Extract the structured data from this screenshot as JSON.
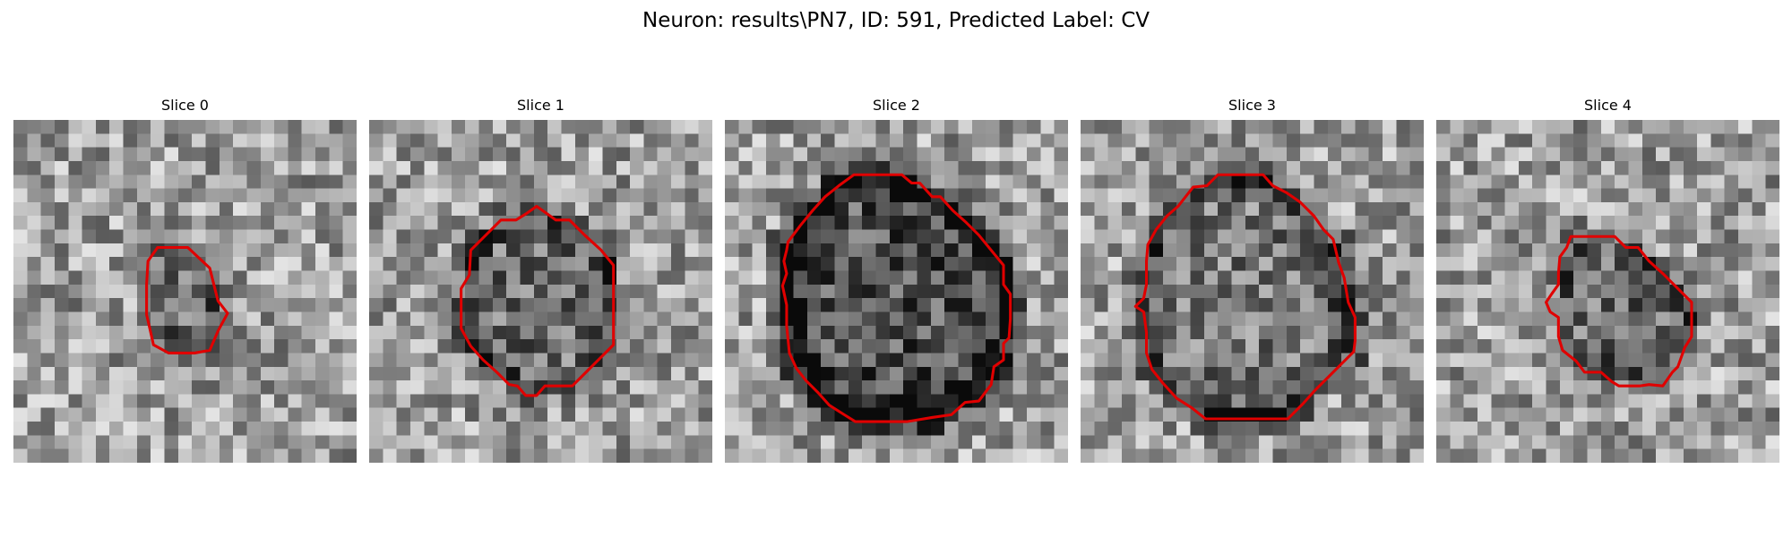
{
  "figure": {
    "title": "Neuron: results\\PN7, ID: 591, Predicted Label: CV",
    "contour_color": "#e00000",
    "colormap": "gray",
    "grid_size": 25,
    "panels": [
      {
        "title": "Slice 0",
        "seed": 11,
        "blob_strength": 0.2,
        "ring_strength": 0.1,
        "outline": [
          [
            10.5,
            9.3
          ],
          [
            12.7,
            9.3
          ],
          [
            14.3,
            10.8
          ],
          [
            14.9,
            13.2
          ],
          [
            15.6,
            14.1
          ],
          [
            14.9,
            15.4
          ],
          [
            14.3,
            16.8
          ],
          [
            13.2,
            17.0
          ],
          [
            11.3,
            17.0
          ],
          [
            10.2,
            16.4
          ],
          [
            10.0,
            15.5
          ],
          [
            9.7,
            14.2
          ],
          [
            9.7,
            12.0
          ],
          [
            9.8,
            10.3
          ]
        ]
      },
      {
        "title": "Slice 1",
        "seed": 23,
        "blob_strength": 0.18,
        "ring_strength": 0.22,
        "outline": [
          [
            11.5,
            6.8
          ],
          [
            12.2,
            6.3
          ],
          [
            12.9,
            6.8
          ],
          [
            13.6,
            7.3
          ],
          [
            14.6,
            7.3
          ],
          [
            15.7,
            8.4
          ],
          [
            16.9,
            9.5
          ],
          [
            17.8,
            10.6
          ],
          [
            17.8,
            12.5
          ],
          [
            17.8,
            14.2
          ],
          [
            17.8,
            16.4
          ],
          [
            16.8,
            17.4
          ],
          [
            15.8,
            18.4
          ],
          [
            14.8,
            19.4
          ],
          [
            13.7,
            19.4
          ],
          [
            12.8,
            19.4
          ],
          [
            12.2,
            20.1
          ],
          [
            11.4,
            20.1
          ],
          [
            10.8,
            19.4
          ],
          [
            10.2,
            19.3
          ],
          [
            9.3,
            18.4
          ],
          [
            8.3,
            17.5
          ],
          [
            7.4,
            16.5
          ],
          [
            6.7,
            15.2
          ],
          [
            6.7,
            13.8
          ],
          [
            6.7,
            12.3
          ],
          [
            7.3,
            11.3
          ],
          [
            7.4,
            9.5
          ],
          [
            8.5,
            8.4
          ],
          [
            9.6,
            7.3
          ],
          [
            10.7,
            7.3
          ]
        ]
      },
      {
        "title": "Slice 2",
        "seed": 37,
        "blob_strength": 0.3,
        "ring_strength": 0.55,
        "outline": [
          [
            9.4,
            4.0
          ],
          [
            11.3,
            4.0
          ],
          [
            12.9,
            4.0
          ],
          [
            13.6,
            4.6
          ],
          [
            14.2,
            4.6
          ],
          [
            15.1,
            5.6
          ],
          [
            15.7,
            5.6
          ],
          [
            16.6,
            6.6
          ],
          [
            17.6,
            7.5
          ],
          [
            18.5,
            8.4
          ],
          [
            19.4,
            9.5
          ],
          [
            20.3,
            10.6
          ],
          [
            20.3,
            12.0
          ],
          [
            20.8,
            12.7
          ],
          [
            20.8,
            14.5
          ],
          [
            20.7,
            15.9
          ],
          [
            20.3,
            16.3
          ],
          [
            20.3,
            17.5
          ],
          [
            19.6,
            18.0
          ],
          [
            19.4,
            19.3
          ],
          [
            18.5,
            20.5
          ],
          [
            17.5,
            20.6
          ],
          [
            16.5,
            21.5
          ],
          [
            15.1,
            21.7
          ],
          [
            13.3,
            22.0
          ],
          [
            11.5,
            22.0
          ],
          [
            9.5,
            22.0
          ],
          [
            8.7,
            21.5
          ],
          [
            7.6,
            20.8
          ],
          [
            6.8,
            19.9
          ],
          [
            5.9,
            19.0
          ],
          [
            5.2,
            18.1
          ],
          [
            4.7,
            17.0
          ],
          [
            4.5,
            15.0
          ],
          [
            4.5,
            13.5
          ],
          [
            4.2,
            12.1
          ],
          [
            4.5,
            11.2
          ],
          [
            4.3,
            10.3
          ],
          [
            4.5,
            9.5
          ],
          [
            4.6,
            8.9
          ],
          [
            5.5,
            7.7
          ],
          [
            6.4,
            6.6
          ],
          [
            7.3,
            5.6
          ],
          [
            8.3,
            4.8
          ]
        ]
      },
      {
        "title": "Slice 3",
        "seed": 53,
        "blob_strength": 0.15,
        "ring_strength": 0.38,
        "outline": [
          [
            8.2,
            4.9
          ],
          [
            9.2,
            4.8
          ],
          [
            10.0,
            4.0
          ],
          [
            12.4,
            4.0
          ],
          [
            13.3,
            4.0
          ],
          [
            14.0,
            4.8
          ],
          [
            15.0,
            5.3
          ],
          [
            16.0,
            6.0
          ],
          [
            17.0,
            7.0
          ],
          [
            17.7,
            8.0
          ],
          [
            18.4,
            8.7
          ],
          [
            18.8,
            10.4
          ],
          [
            19.2,
            11.5
          ],
          [
            19.5,
            13.3
          ],
          [
            20.0,
            14.4
          ],
          [
            20.0,
            16.1
          ],
          [
            19.9,
            16.9
          ],
          [
            19.0,
            17.8
          ],
          [
            18.0,
            18.8
          ],
          [
            17.0,
            19.8
          ],
          [
            16.2,
            20.7
          ],
          [
            15.1,
            21.8
          ],
          [
            14.9,
            21.8
          ],
          [
            12.8,
            21.8
          ],
          [
            11.0,
            21.8
          ],
          [
            9.1,
            21.8
          ],
          [
            8.1,
            21.0
          ],
          [
            7.0,
            20.3
          ],
          [
            6.0,
            19.2
          ],
          [
            5.2,
            18.2
          ],
          [
            4.8,
            17.0
          ],
          [
            4.8,
            15.5
          ],
          [
            4.6,
            14.0
          ],
          [
            4.0,
            13.6
          ],
          [
            4.6,
            13.0
          ],
          [
            4.8,
            12.0
          ],
          [
            4.8,
            10.3
          ],
          [
            4.9,
            9.1
          ],
          [
            5.5,
            8.0
          ],
          [
            6.3,
            7.0
          ],
          [
            7.1,
            6.3
          ]
        ]
      },
      {
        "title": "Slice 4",
        "seed": 71,
        "blob_strength": 0.2,
        "ring_strength": 0.12,
        "outline": [
          [
            9.8,
            8.5
          ],
          [
            11.8,
            8.5
          ],
          [
            13.0,
            8.5
          ],
          [
            13.8,
            9.3
          ],
          [
            14.7,
            9.3
          ],
          [
            15.5,
            10.3
          ],
          [
            16.5,
            11.2
          ],
          [
            17.6,
            12.3
          ],
          [
            18.6,
            13.3
          ],
          [
            18.6,
            14.5
          ],
          [
            18.6,
            15.8
          ],
          [
            18.1,
            16.6
          ],
          [
            17.6,
            18.0
          ],
          [
            17.2,
            18.4
          ],
          [
            16.5,
            19.4
          ],
          [
            15.5,
            19.3
          ],
          [
            14.8,
            19.4
          ],
          [
            13.3,
            19.4
          ],
          [
            12.8,
            19.1
          ],
          [
            12.0,
            18.4
          ],
          [
            10.8,
            18.4
          ],
          [
            10.2,
            17.6
          ],
          [
            9.2,
            16.8
          ],
          [
            8.9,
            15.8
          ],
          [
            8.9,
            14.4
          ],
          [
            8.3,
            14.0
          ],
          [
            8.0,
            13.3
          ],
          [
            8.4,
            12.7
          ],
          [
            8.9,
            12.0
          ],
          [
            8.9,
            11.2
          ],
          [
            9.0,
            10.0
          ],
          [
            9.5,
            9.3
          ]
        ]
      }
    ]
  }
}
